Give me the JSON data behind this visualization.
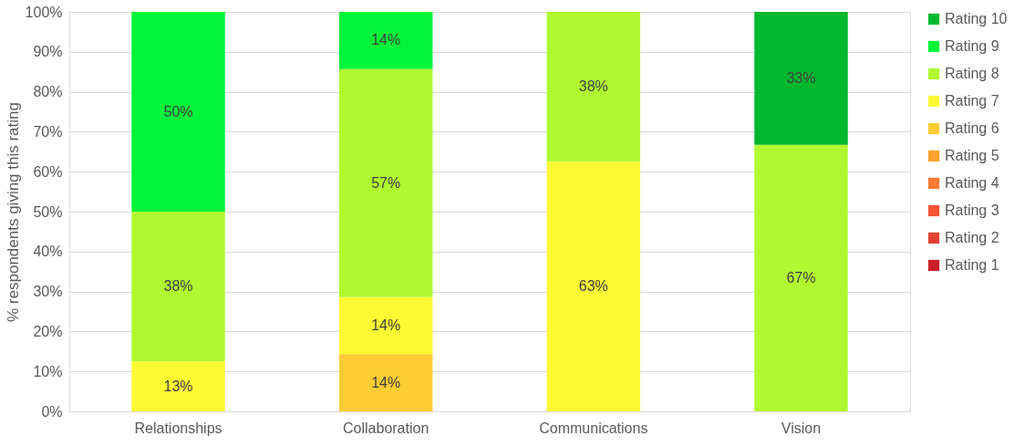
{
  "chart_data": {
    "type": "bar",
    "stacked": true,
    "ylabel": "% respondents giving this rating",
    "categories": [
      "Relationships",
      "Collaboration",
      "Communications",
      "Vision"
    ],
    "series": [
      {
        "name": "Rating 1",
        "color": "#c9202a",
        "values": [
          null,
          null,
          null,
          null
        ]
      },
      {
        "name": "Rating 2",
        "color": "#e0402f",
        "values": [
          null,
          null,
          null,
          null
        ]
      },
      {
        "name": "Rating 3",
        "color": "#fc5533",
        "values": [
          null,
          null,
          null,
          null
        ]
      },
      {
        "name": "Rating 4",
        "color": "#fd7a33",
        "values": [
          null,
          null,
          null,
          null
        ]
      },
      {
        "name": "Rating 5",
        "color": "#fda330",
        "values": [
          null,
          null,
          null,
          null
        ]
      },
      {
        "name": "Rating 6",
        "color": "#fdcc33",
        "values": [
          null,
          14.3,
          null,
          null
        ],
        "value_labels": [
          null,
          "14%",
          null,
          null
        ]
      },
      {
        "name": "Rating 7",
        "color": "#fdf933",
        "values": [
          12.5,
          14.3,
          62.5,
          null
        ],
        "value_labels": [
          "13%",
          "14%",
          "63%",
          null
        ]
      },
      {
        "name": "Rating 8",
        "color": "#b0f930",
        "values": [
          37.5,
          57.1,
          37.5,
          66.7
        ],
        "value_labels": [
          "38%",
          "57%",
          "38%",
          "67%"
        ]
      },
      {
        "name": "Rating 9",
        "color": "#00f53a",
        "values": [
          50,
          14.3,
          null,
          null
        ],
        "value_labels": [
          "50%",
          "14%",
          null,
          null
        ]
      },
      {
        "name": "Rating 10",
        "color": "#00b82e",
        "values": [
          null,
          null,
          null,
          33.3
        ],
        "value_labels": [
          null,
          null,
          null,
          "33%"
        ]
      }
    ],
    "ylim": [
      0,
      100
    ],
    "yticks": [
      {
        "value": 0,
        "label": "0%"
      },
      {
        "value": 10,
        "label": "10%"
      },
      {
        "value": 20,
        "label": "20%"
      },
      {
        "value": 30,
        "label": "30%"
      },
      {
        "value": 40,
        "label": "40%"
      },
      {
        "value": 50,
        "label": "50%"
      },
      {
        "value": 60,
        "label": "60%"
      },
      {
        "value": 70,
        "label": "70%"
      },
      {
        "value": 80,
        "label": "80%"
      },
      {
        "value": 90,
        "label": "90%"
      },
      {
        "value": 100,
        "label": "100%"
      }
    ],
    "grid": "y",
    "legend": "right"
  }
}
